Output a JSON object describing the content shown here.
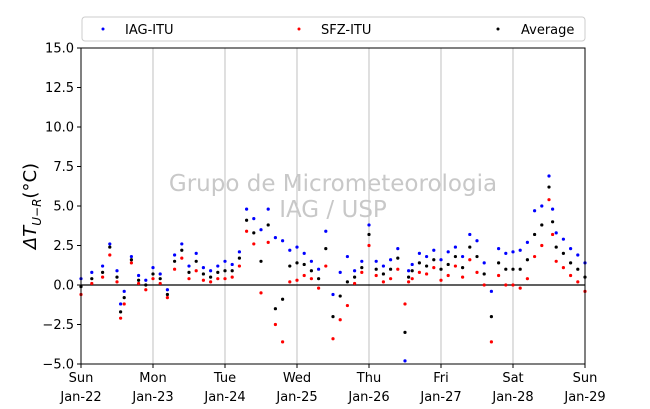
{
  "chart_data": {
    "type": "scatter",
    "title": "",
    "ylabel": "ΔT_U−R(°C)",
    "ylabel_parts": {
      "delta": "ΔT",
      "sub": "U−R",
      "unit": "(°C)"
    },
    "xlabel": "",
    "ylim": [
      -5.0,
      15.0
    ],
    "xlim": [
      0,
      7
    ],
    "yticks": [
      -5.0,
      -2.5,
      0.0,
      2.5,
      5.0,
      7.5,
      10.0,
      12.5,
      15.0
    ],
    "ytick_labels": [
      "−5.0",
      "−2.5",
      "0.0",
      "2.5",
      "5.0",
      "7.5",
      "10.0",
      "12.5",
      "15.0"
    ],
    "xticks": [
      0,
      1,
      2,
      3,
      4,
      5,
      6,
      7
    ],
    "xtick_labels": [
      [
        "Sun",
        "Jan-22"
      ],
      [
        "Mon",
        "Jan-23"
      ],
      [
        "Tue",
        "Jan-24"
      ],
      [
        "Wed",
        "Jan-25"
      ],
      [
        "Thu",
        "Jan-26"
      ],
      [
        "Fri",
        "Jan-27"
      ],
      [
        "Sat",
        "Jan-28"
      ],
      [
        "Sun",
        "Jan-29"
      ]
    ],
    "vertical_grid": true,
    "zero_line": 0.0,
    "legend": {
      "placement": "top",
      "entries": [
        "IAG-ITU",
        "SFZ-ITU",
        "Average"
      ]
    },
    "watermark": [
      "Grupo de Micrometeorologia",
      "IAG / USP"
    ],
    "series": [
      {
        "name": "IAG-ITU",
        "color": "#0000ff",
        "x": [
          0.0,
          0.15,
          0.3,
          0.4,
          0.5,
          0.55,
          0.6,
          0.7,
          0.8,
          0.9,
          1.0,
          1.1,
          1.2,
          1.3,
          1.4,
          1.5,
          1.6,
          1.7,
          1.8,
          1.9,
          2.0,
          2.1,
          2.2,
          2.3,
          2.4,
          2.5,
          2.6,
          2.7,
          2.8,
          2.9,
          3.0,
          3.1,
          3.2,
          3.3,
          3.4,
          3.5,
          3.6,
          3.7,
          3.8,
          3.9,
          4.0,
          4.1,
          4.2,
          4.3,
          4.4,
          4.5,
          4.55,
          4.6,
          4.7,
          4.8,
          4.9,
          5.0,
          5.1,
          5.2,
          5.3,
          5.4,
          5.5,
          5.6,
          5.7,
          5.8,
          5.9,
          6.0,
          6.1,
          6.2,
          6.3,
          6.4,
          6.5,
          6.55,
          6.6,
          6.7,
          6.8,
          6.9,
          7.0
        ],
        "y": [
          0.4,
          0.8,
          1.2,
          2.6,
          0.9,
          -1.2,
          -0.4,
          1.8,
          0.6,
          0.3,
          1.1,
          0.7,
          -0.3,
          1.9,
          2.6,
          1.2,
          2.0,
          1.1,
          0.9,
          1.2,
          1.5,
          1.3,
          2.1,
          4.8,
          4.2,
          3.5,
          4.8,
          3.0,
          2.8,
          2.2,
          2.4,
          2.0,
          1.5,
          1.0,
          3.4,
          -0.6,
          0.8,
          1.8,
          0.9,
          1.5,
          3.8,
          1.5,
          1.2,
          1.6,
          2.3,
          -4.8,
          0.9,
          1.3,
          2.0,
          1.8,
          2.2,
          1.6,
          2.1,
          2.4,
          1.8,
          3.2,
          2.8,
          1.4,
          -0.4,
          2.3,
          2.0,
          2.1,
          2.2,
          2.7,
          4.7,
          5.0,
          6.9,
          4.8,
          3.3,
          2.9,
          2.3,
          1.9,
          1.4
        ]
      },
      {
        "name": "SFZ-ITU",
        "color": "#ff0000",
        "x": [
          0.0,
          0.15,
          0.3,
          0.4,
          0.5,
          0.55,
          0.6,
          0.7,
          0.8,
          0.9,
          1.0,
          1.1,
          1.2,
          1.3,
          1.4,
          1.5,
          1.6,
          1.7,
          1.8,
          1.9,
          2.0,
          2.1,
          2.2,
          2.3,
          2.4,
          2.5,
          2.6,
          2.7,
          2.8,
          2.9,
          3.0,
          3.1,
          3.2,
          3.3,
          3.4,
          3.5,
          3.6,
          3.7,
          3.8,
          3.9,
          4.0,
          4.1,
          4.2,
          4.3,
          4.4,
          4.5,
          4.55,
          4.6,
          4.7,
          4.8,
          4.9,
          5.0,
          5.1,
          5.2,
          5.3,
          5.4,
          5.5,
          5.6,
          5.7,
          5.8,
          5.9,
          6.0,
          6.1,
          6.2,
          6.3,
          6.4,
          6.5,
          6.55,
          6.6,
          6.7,
          6.8,
          6.9,
          7.0
        ],
        "y": [
          -0.6,
          0.1,
          0.5,
          1.9,
          0.2,
          -2.1,
          -1.2,
          1.4,
          0.1,
          -0.3,
          0.4,
          0.1,
          -0.8,
          1.0,
          1.7,
          0.4,
          0.9,
          0.3,
          0.2,
          0.4,
          0.4,
          0.5,
          1.2,
          3.4,
          2.6,
          -0.5,
          2.7,
          -2.5,
          -3.6,
          0.2,
          0.3,
          0.6,
          0.4,
          -0.2,
          1.2,
          -3.4,
          -2.2,
          -1.3,
          0.1,
          0.8,
          2.5,
          0.6,
          0.2,
          0.4,
          1.0,
          -1.2,
          0.2,
          0.4,
          0.8,
          0.7,
          1.1,
          0.3,
          0.6,
          1.2,
          0.5,
          1.6,
          0.8,
          0.0,
          -3.6,
          0.6,
          0.0,
          0.0,
          -0.2,
          0.4,
          1.8,
          2.5,
          5.4,
          3.2,
          1.5,
          1.1,
          0.6,
          0.2,
          -0.4
        ]
      },
      {
        "name": "Average",
        "color": "#000000",
        "x": [
          0.0,
          0.15,
          0.3,
          0.4,
          0.5,
          0.55,
          0.6,
          0.7,
          0.8,
          0.9,
          1.0,
          1.1,
          1.2,
          1.3,
          1.4,
          1.5,
          1.6,
          1.7,
          1.8,
          1.9,
          2.0,
          2.1,
          2.2,
          2.3,
          2.4,
          2.5,
          2.6,
          2.7,
          2.8,
          2.9,
          3.0,
          3.1,
          3.2,
          3.3,
          3.4,
          3.5,
          3.6,
          3.7,
          3.8,
          3.9,
          4.0,
          4.1,
          4.2,
          4.3,
          4.4,
          4.5,
          4.55,
          4.6,
          4.7,
          4.8,
          4.9,
          5.0,
          5.1,
          5.2,
          5.3,
          5.4,
          5.5,
          5.6,
          5.7,
          5.8,
          5.9,
          6.0,
          6.1,
          6.2,
          6.3,
          6.4,
          6.5,
          6.55,
          6.6,
          6.7,
          6.8,
          6.9,
          7.0
        ],
        "y": [
          -0.1,
          0.4,
          0.8,
          2.4,
          0.5,
          -1.7,
          -0.8,
          1.6,
          0.3,
          0.0,
          0.7,
          0.4,
          -0.6,
          1.5,
          2.2,
          0.8,
          1.5,
          0.7,
          0.5,
          0.8,
          0.9,
          0.9,
          1.7,
          4.1,
          3.3,
          1.5,
          3.8,
          -1.5,
          -0.9,
          1.2,
          1.4,
          1.3,
          0.9,
          0.4,
          2.3,
          -2.0,
          -0.7,
          0.2,
          0.5,
          1.1,
          3.2,
          1.0,
          0.7,
          1.0,
          1.7,
          -3.0,
          0.5,
          0.9,
          1.4,
          1.2,
          1.6,
          1.0,
          1.3,
          1.8,
          1.1,
          2.4,
          1.8,
          0.7,
          -2.0,
          1.4,
          1.0,
          1.0,
          1.0,
          1.6,
          3.2,
          3.8,
          6.2,
          4.0,
          2.4,
          2.0,
          1.4,
          1.0,
          0.5
        ]
      }
    ]
  }
}
